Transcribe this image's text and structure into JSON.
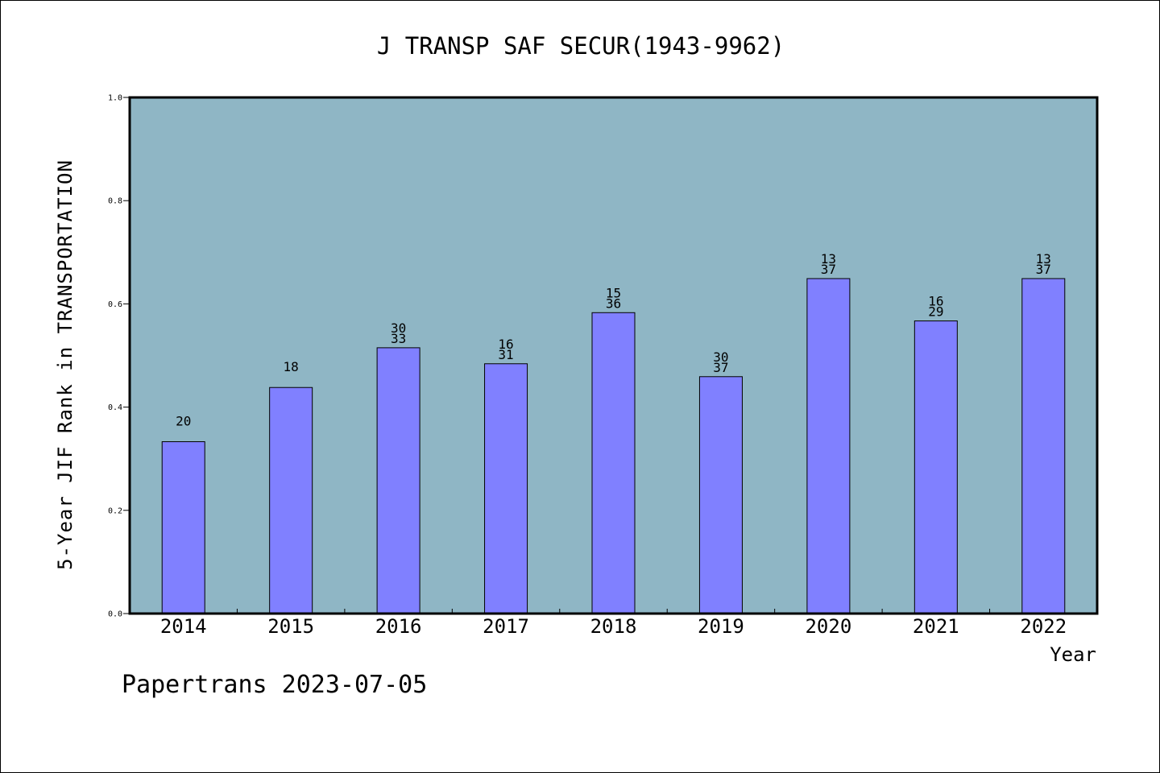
{
  "chart_data": {
    "type": "bar",
    "title": "J TRANSP SAF SECUR(1943-9962)",
    "xlabel": "Year",
    "ylabel": "5-Year JIF Rank in TRANSPORTATION",
    "categories": [
      "2014",
      "2015",
      "2016",
      "2017",
      "2018",
      "2019",
      "2020",
      "2021",
      "2022"
    ],
    "values": [
      0.333,
      0.438,
      0.515,
      0.484,
      0.583,
      0.459,
      0.649,
      0.567,
      0.649
    ],
    "bar_labels": [
      [
        "20"
      ],
      [
        "18"
      ],
      [
        "30",
        "33"
      ],
      [
        "16",
        "31"
      ],
      [
        "15",
        "36"
      ],
      [
        "30",
        "37"
      ],
      [
        "13",
        "37"
      ],
      [
        "16",
        "29"
      ],
      [
        "13",
        "37"
      ]
    ],
    "ylim": [
      0,
      1.0
    ],
    "yticks": [
      "0.0",
      "0.2",
      "0.4",
      "0.6",
      "0.8",
      "1.0"
    ],
    "grid": false,
    "legend": "none",
    "colors": {
      "plot_background": "#8fb6c5",
      "bar_fill": "#8080ff",
      "bar_edge": "#000000"
    }
  },
  "footer": {
    "text": "Papertrans 2023-07-05"
  }
}
